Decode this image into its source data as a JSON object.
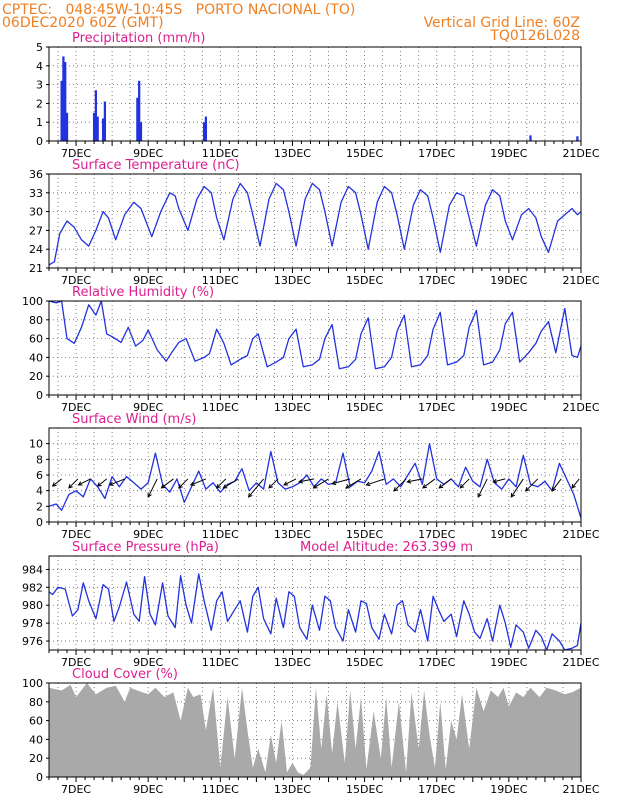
{
  "header": {
    "left_line1": "CPTEC:   048:45W-10:45S   PORTO NACIONAL (TO)",
    "left_line2": "06DEC2020 60Z (GMT)",
    "right_line1": "Vertical Grid Line: 60Z",
    "right_line2": "TQ0126L028"
  },
  "colors": {
    "header": "#ee7f22",
    "title": "#dd1e8f",
    "line": "#2233dd",
    "bar": "#2233dd",
    "cloud": "#a9a9a9",
    "wind_arrow": "#000000"
  },
  "x_axis": {
    "labels": [
      "7DEC",
      "9DEC",
      "11DEC",
      "13DEC",
      "15DEC",
      "17DEC",
      "19DEC",
      "21DEC"
    ],
    "start_day": 6.25,
    "end_day": 21
  },
  "chart_data": [
    {
      "type": "bar",
      "title": "Precipitation (mm/h)",
      "ylim": [
        0,
        5
      ],
      "yticks": [
        0,
        1,
        2,
        3,
        4,
        5
      ],
      "x": [
        6.6,
        6.65,
        6.7,
        6.75,
        7.5,
        7.55,
        7.6,
        7.75,
        7.8,
        8.7,
        8.75,
        8.8,
        10.55,
        10.6,
        19.6,
        20.9
      ],
      "values": [
        3.2,
        4.5,
        4.2,
        1.5,
        1.5,
        2.7,
        1.3,
        1.2,
        2.1,
        2.3,
        3.2,
        1.0,
        1.0,
        1.3,
        0.3,
        0.25
      ]
    },
    {
      "type": "line",
      "title": "Surface Temperature (nC)",
      "ylim": [
        21,
        36
      ],
      "yticks": [
        21,
        24,
        27,
        30,
        33,
        36
      ],
      "x": [
        6.25,
        6.4,
        6.55,
        6.75,
        6.95,
        7.15,
        7.35,
        7.55,
        7.75,
        7.9,
        8.1,
        8.35,
        8.6,
        8.8,
        9.1,
        9.35,
        9.6,
        9.75,
        9.85,
        10.1,
        10.35,
        10.55,
        10.75,
        10.9,
        11.1,
        11.35,
        11.55,
        11.75,
        11.9,
        12.1,
        12.35,
        12.55,
        12.75,
        12.9,
        13.1,
        13.35,
        13.55,
        13.75,
        13.9,
        14.1,
        14.35,
        14.55,
        14.75,
        14.9,
        15.1,
        15.35,
        15.55,
        15.75,
        15.9,
        16.1,
        16.35,
        16.55,
        16.75,
        16.9,
        17.1,
        17.35,
        17.55,
        17.75,
        17.9,
        18.1,
        18.35,
        18.55,
        18.75,
        18.9,
        19.1,
        19.35,
        19.55,
        19.75,
        19.9,
        20.1,
        20.35,
        20.55,
        20.75,
        20.9,
        21.0
      ],
      "values": [
        21.5,
        22.0,
        26.5,
        28.5,
        27.5,
        25.5,
        24.5,
        27.0,
        30.0,
        29.0,
        25.5,
        29.5,
        31.5,
        30.5,
        26.0,
        30.0,
        33.0,
        32.5,
        30.5,
        27.0,
        32.0,
        34.0,
        33.0,
        29.0,
        25.5,
        32.0,
        34.5,
        33.0,
        29.5,
        24.5,
        32.0,
        34.5,
        33.5,
        30.0,
        24.5,
        32.0,
        34.5,
        33.5,
        30.0,
        24.5,
        31.5,
        34.0,
        33.0,
        29.5,
        24.0,
        31.5,
        34.0,
        33.0,
        29.5,
        24.0,
        31.0,
        33.5,
        32.5,
        29.0,
        23.5,
        31.0,
        33.0,
        32.5,
        29.0,
        24.5,
        31.0,
        33.5,
        32.5,
        28.5,
        25.5,
        29.5,
        30.5,
        29.0,
        26.0,
        23.5,
        28.5,
        29.5,
        30.5,
        29.5,
        30.0
      ]
    },
    {
      "type": "line",
      "title": "Relative Humidity (%)",
      "ylim": [
        0,
        100
      ],
      "yticks": [
        0,
        20,
        40,
        60,
        80,
        100
      ],
      "x": [
        6.25,
        6.45,
        6.6,
        6.75,
        6.95,
        7.15,
        7.35,
        7.55,
        7.7,
        7.85,
        8.0,
        8.25,
        8.45,
        8.65,
        8.85,
        9.0,
        9.25,
        9.5,
        9.65,
        9.85,
        10.05,
        10.3,
        10.55,
        10.7,
        10.9,
        11.1,
        11.3,
        11.55,
        11.75,
        11.9,
        12.05,
        12.3,
        12.55,
        12.75,
        12.9,
        13.1,
        13.3,
        13.55,
        13.75,
        13.9,
        14.1,
        14.3,
        14.55,
        14.75,
        14.9,
        15.1,
        15.3,
        15.55,
        15.75,
        15.9,
        16.1,
        16.3,
        16.55,
        16.75,
        16.9,
        17.1,
        17.3,
        17.55,
        17.75,
        17.9,
        18.1,
        18.3,
        18.55,
        18.75,
        18.9,
        19.1,
        19.3,
        19.55,
        19.75,
        19.9,
        20.1,
        20.3,
        20.55,
        20.75,
        20.9,
        21.0
      ],
      "values": [
        100,
        98,
        100,
        60,
        55,
        72,
        96,
        85,
        100,
        65,
        62,
        56,
        72,
        52,
        58,
        69,
        48,
        36,
        45,
        56,
        60,
        36,
        40,
        44,
        70,
        55,
        32,
        38,
        42,
        60,
        65,
        30,
        35,
        40,
        60,
        70,
        30,
        32,
        38,
        60,
        75,
        28,
        30,
        38,
        65,
        82,
        28,
        30,
        40,
        68,
        85,
        30,
        32,
        42,
        70,
        88,
        32,
        35,
        42,
        72,
        90,
        32,
        35,
        48,
        76,
        88,
        35,
        45,
        55,
        68,
        78,
        45,
        92,
        42,
        40,
        52
      ]
    },
    {
      "type": "line",
      "title": "Surface Wind (m/s)",
      "ylim": [
        0,
        12
      ],
      "yticks": [
        0,
        2,
        4,
        6,
        8,
        10
      ],
      "x": [
        6.25,
        6.45,
        6.6,
        6.8,
        7.0,
        7.2,
        7.4,
        7.6,
        7.8,
        8.0,
        8.2,
        8.4,
        8.6,
        8.8,
        9.0,
        9.2,
        9.4,
        9.6,
        9.8,
        10.0,
        10.2,
        10.4,
        10.6,
        10.8,
        11.0,
        11.2,
        11.4,
        11.6,
        11.8,
        12.0,
        12.2,
        12.4,
        12.6,
        12.8,
        13.0,
        13.2,
        13.4,
        13.6,
        13.8,
        14.0,
        14.2,
        14.4,
        14.6,
        14.8,
        15.0,
        15.2,
        15.4,
        15.6,
        15.8,
        16.0,
        16.2,
        16.4,
        16.6,
        16.8,
        17.0,
        17.2,
        17.4,
        17.6,
        17.8,
        18.0,
        18.2,
        18.4,
        18.6,
        18.8,
        19.0,
        19.2,
        19.4,
        19.6,
        19.8,
        20.0,
        20.2,
        20.4,
        20.6,
        20.8,
        21.0
      ],
      "values": [
        2.0,
        2.3,
        1.5,
        3.5,
        4.0,
        3.2,
        5.5,
        4.5,
        3.0,
        5.8,
        4.5,
        5.8,
        5.0,
        4.2,
        5.0,
        8.8,
        4.8,
        3.8,
        5.5,
        2.5,
        4.5,
        6.5,
        4.2,
        5.0,
        3.8,
        4.8,
        5.2,
        6.8,
        4.0,
        5.0,
        4.2,
        9.0,
        5.0,
        4.2,
        4.5,
        5.0,
        6.0,
        4.5,
        5.5,
        4.8,
        5.0,
        8.8,
        4.5,
        5.2,
        5.0,
        6.5,
        9.0,
        4.8,
        5.5,
        4.5,
        6.0,
        7.5,
        4.8,
        10.0,
        5.5,
        4.8,
        5.5,
        4.5,
        7.0,
        5.2,
        4.5,
        8.0,
        5.0,
        4.2,
        5.5,
        4.5,
        8.5,
        4.8,
        4.5,
        5.2,
        4.0,
        7.5,
        5.5,
        3.5,
        0.5
      ],
      "arrows": [
        {
          "x": 6.6,
          "u": 1.5,
          "v": 1.2
        },
        {
          "x": 7.05,
          "u": 1.5,
          "v": 1.5
        },
        {
          "x": 7.4,
          "u": 2.0,
          "v": 1.0
        },
        {
          "x": 7.85,
          "u": 1.5,
          "v": 1.2
        },
        {
          "x": 8.35,
          "u": 2.5,
          "v": 1.0
        },
        {
          "x": 9.25,
          "u": 1.5,
          "v": 3.0
        },
        {
          "x": 9.7,
          "u": 2.0,
          "v": 1.5
        },
        {
          "x": 10.1,
          "u": 1.5,
          "v": 1.5
        },
        {
          "x": 10.6,
          "u": 2.5,
          "v": 1.0
        },
        {
          "x": 11.15,
          "u": 1.5,
          "v": 1.5
        },
        {
          "x": 11.5,
          "u": 2.5,
          "v": 1.5
        },
        {
          "x": 12.2,
          "u": 2.5,
          "v": 3.0
        },
        {
          "x": 12.6,
          "u": 1.5,
          "v": 1.5
        },
        {
          "x": 13.1,
          "u": 2.0,
          "v": 1.0
        },
        {
          "x": 13.6,
          "u": 2.5,
          "v": 0.5
        },
        {
          "x": 14.0,
          "u": 2.5,
          "v": 1.5
        },
        {
          "x": 14.6,
          "u": 3.0,
          "v": 0.8
        },
        {
          "x": 14.9,
          "u": 2.5,
          "v": 1.5
        },
        {
          "x": 15.55,
          "u": 3.0,
          "v": 1.0
        },
        {
          "x": 16.15,
          "u": 2.0,
          "v": 2.0
        },
        {
          "x": 16.6,
          "u": 2.5,
          "v": 0.5
        },
        {
          "x": 16.95,
          "u": 2.0,
          "v": 1.5
        },
        {
          "x": 17.4,
          "u": 2.0,
          "v": 1.5
        },
        {
          "x": 17.9,
          "u": 1.5,
          "v": 1.5
        },
        {
          "x": 18.4,
          "u": 1.5,
          "v": 3.0
        },
        {
          "x": 18.9,
          "u": 2.0,
          "v": 0.5
        },
        {
          "x": 19.4,
          "u": 2.0,
          "v": 3.0
        },
        {
          "x": 19.8,
          "u": 2.0,
          "v": 2.0
        },
        {
          "x": 20.45,
          "u": 1.5,
          "v": 2.0
        },
        {
          "x": 20.95,
          "u": 1.2,
          "v": 1.5
        }
      ]
    },
    {
      "type": "line",
      "title": "Surface Pressure (hPa)",
      "annotation": "Model Altitude: 263.399 m",
      "ylim": [
        975,
        985.5
      ],
      "yticks": [
        976,
        978,
        980,
        982,
        984
      ],
      "x": [
        6.25,
        6.35,
        6.5,
        6.7,
        6.9,
        7.05,
        7.2,
        7.35,
        7.55,
        7.75,
        7.9,
        8.05,
        8.2,
        8.4,
        8.6,
        8.75,
        8.9,
        9.05,
        9.2,
        9.4,
        9.55,
        9.75,
        9.9,
        10.05,
        10.2,
        10.4,
        10.55,
        10.75,
        10.9,
        11.05,
        11.2,
        11.4,
        11.55,
        11.75,
        11.9,
        12.05,
        12.2,
        12.4,
        12.55,
        12.75,
        12.9,
        13.05,
        13.2,
        13.4,
        13.55,
        13.75,
        13.9,
        14.05,
        14.2,
        14.4,
        14.55,
        14.75,
        14.9,
        15.05,
        15.2,
        15.4,
        15.55,
        15.75,
        15.9,
        16.05,
        16.2,
        16.4,
        16.55,
        16.75,
        16.9,
        17.05,
        17.2,
        17.4,
        17.55,
        17.75,
        17.9,
        18.05,
        18.2,
        18.4,
        18.55,
        18.75,
        18.9,
        19.05,
        19.2,
        19.4,
        19.55,
        19.75,
        19.9,
        20.05,
        20.2,
        20.4,
        20.55,
        20.75,
        20.9,
        21.0
      ],
      "values": [
        981.5,
        981.2,
        982.0,
        981.8,
        978.8,
        979.5,
        982.5,
        980.5,
        978.5,
        982.3,
        981.8,
        978.2,
        979.8,
        982.6,
        979.0,
        978.2,
        983.2,
        979.0,
        977.8,
        982.5,
        978.8,
        977.5,
        983.3,
        980.0,
        978.0,
        983.5,
        980.5,
        977.2,
        980.5,
        981.5,
        978.2,
        979.5,
        980.5,
        977.0,
        981.0,
        982.0,
        978.5,
        976.8,
        980.8,
        977.5,
        981.5,
        981.0,
        977.5,
        976.2,
        980.0,
        977.2,
        981.0,
        980.5,
        977.5,
        976.0,
        979.5,
        977.0,
        980.5,
        980.2,
        977.5,
        976.2,
        979.0,
        976.8,
        980.0,
        980.5,
        977.8,
        977.0,
        979.5,
        976.0,
        981.0,
        979.5,
        978.2,
        979.0,
        976.5,
        980.5,
        979.0,
        977.0,
        976.3,
        978.5,
        976.0,
        980.0,
        978.0,
        975.3,
        977.8,
        977.0,
        975.2,
        977.2,
        976.5,
        975.0,
        976.8,
        976.0,
        975.0,
        975.2,
        975.5,
        978.0
      ]
    },
    {
      "type": "area",
      "title": "Cloud Cover (%)",
      "ylim": [
        0,
        100
      ],
      "yticks": [
        0,
        20,
        40,
        60,
        80,
        100
      ],
      "x": [
        6.25,
        6.6,
        6.85,
        7.0,
        7.3,
        7.55,
        7.85,
        8.1,
        8.35,
        8.5,
        8.7,
        9.0,
        9.2,
        9.45,
        9.7,
        9.9,
        10.1,
        10.25,
        10.45,
        10.6,
        10.8,
        11.0,
        11.2,
        11.4,
        11.6,
        11.75,
        11.9,
        12.05,
        12.25,
        12.4,
        12.55,
        12.7,
        12.85,
        13.0,
        13.15,
        13.3,
        13.5,
        13.65,
        13.8,
        13.95,
        14.1,
        14.25,
        14.45,
        14.6,
        14.75,
        14.9,
        15.05,
        15.25,
        15.45,
        15.6,
        15.75,
        15.95,
        16.15,
        16.3,
        16.5,
        16.65,
        16.8,
        16.95,
        17.1,
        17.25,
        17.4,
        17.55,
        17.7,
        17.9,
        18.1,
        18.3,
        18.5,
        18.7,
        18.85,
        19.0,
        19.2,
        19.4,
        19.6,
        19.85,
        20.05,
        20.3,
        20.55,
        20.75,
        21.0
      ],
      "values": [
        95,
        92,
        98,
        85,
        100,
        88,
        95,
        97,
        80,
        95,
        92,
        88,
        95,
        85,
        90,
        60,
        95,
        85,
        88,
        50,
        95,
        10,
        85,
        20,
        95,
        50,
        10,
        30,
        5,
        45,
        15,
        60,
        5,
        15,
        5,
        2,
        10,
        95,
        30,
        88,
        25,
        80,
        15,
        92,
        30,
        85,
        8,
        70,
        20,
        85,
        10,
        80,
        5,
        90,
        30,
        92,
        45,
        10,
        80,
        8,
        60,
        40,
        88,
        30,
        95,
        70,
        92,
        85,
        95,
        75,
        90,
        85,
        95,
        85,
        95,
        92,
        88,
        90,
        95
      ]
    }
  ]
}
